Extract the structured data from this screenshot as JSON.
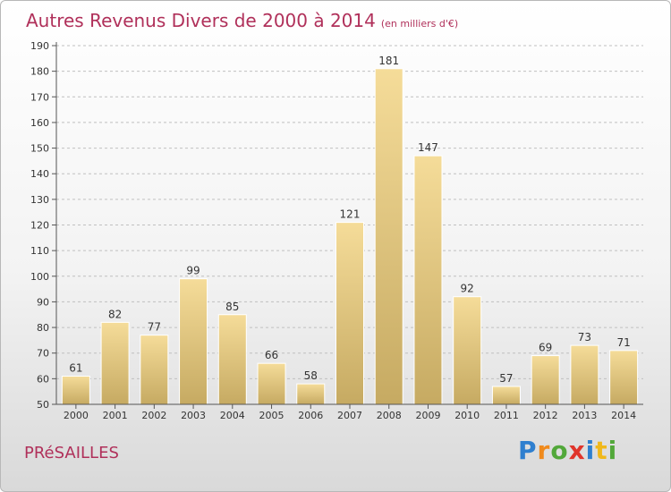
{
  "page": {
    "title": "Autres Revenus Divers de 2000 à 2014",
    "unit": "(en milliers d'€)",
    "town": "PRéSAILLES",
    "logo_letters": [
      "P",
      "r",
      "o",
      "x",
      "i",
      "t",
      "i"
    ]
  },
  "chart_data": {
    "type": "bar",
    "title": "Autres Revenus Divers de 2000 à 2014",
    "subtitle": "(en milliers d'€)",
    "xlabel": "",
    "ylabel": "",
    "categories": [
      "2000",
      "2001",
      "2002",
      "2003",
      "2004",
      "2005",
      "2006",
      "2007",
      "2008",
      "2009",
      "2010",
      "2011",
      "2012",
      "2013",
      "2014"
    ],
    "values": [
      61,
      82,
      77,
      99,
      85,
      66,
      58,
      121,
      181,
      147,
      92,
      57,
      69,
      73,
      71
    ],
    "ylim": [
      50,
      190
    ],
    "yticks": [
      50,
      60,
      70,
      80,
      90,
      100,
      110,
      120,
      130,
      140,
      150,
      160,
      170,
      180,
      190
    ],
    "grid": true,
    "legend": "none",
    "colors": {
      "bar_top": "#f5dc99",
      "bar_bottom": "#c6aa62",
      "grid": "#c0c0c0",
      "text": "#333333",
      "title": "#b0305a"
    }
  }
}
